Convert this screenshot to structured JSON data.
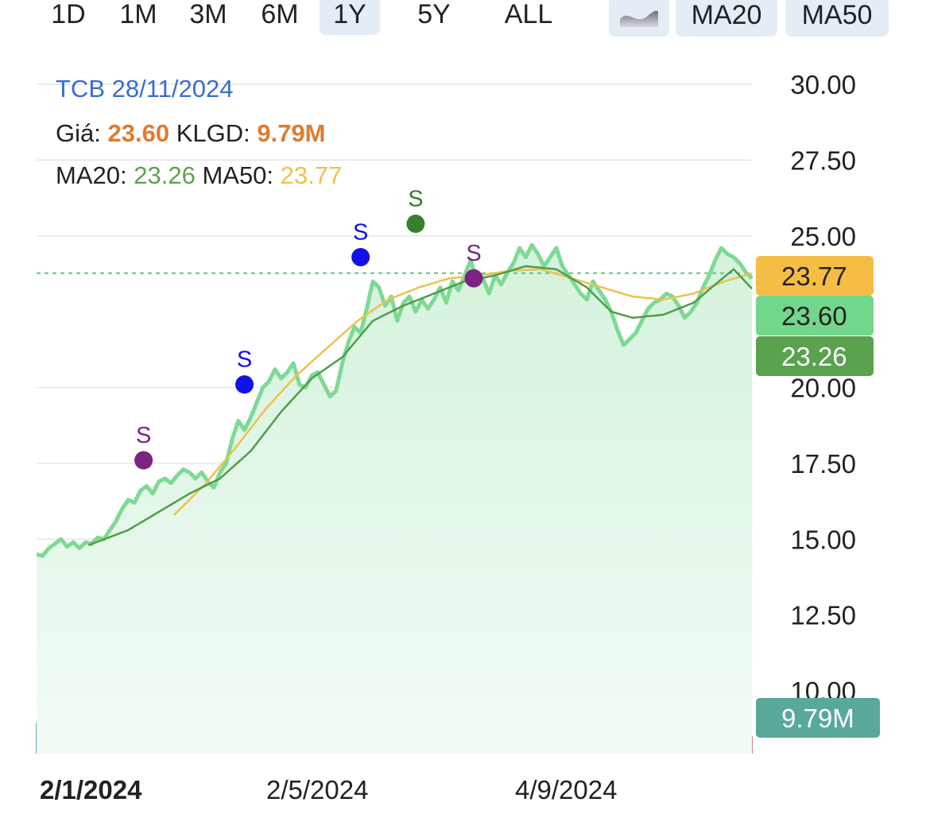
{
  "toolbar": {
    "ranges": [
      "1D",
      "1M",
      "3M",
      "6M",
      "1Y",
      "5Y",
      "ALL"
    ],
    "active_range": "1Y",
    "chart_type_icon": "area-chart-icon",
    "indicators": [
      "MA20",
      "MA50"
    ]
  },
  "header": {
    "symbol_date": "TCB 28/11/2024",
    "price_label": "Giá:",
    "price_value": "23.60",
    "volume_label": "KLGD:",
    "volume_value": "9.79M",
    "ma20_label": "MA20:",
    "ma20_value": "23.26",
    "ma50_label": "MA50:",
    "ma50_value": "23.77"
  },
  "colors": {
    "price_line": "#7ed995",
    "price_fill": "#dcf4e3",
    "ma20": "#4e9e48",
    "ma50": "#edc24c",
    "signal_blue": "#1111e8",
    "signal_purple": "#7b2283",
    "signal_green": "#34802c",
    "volume_up": "#3e9c8f",
    "volume_down": "#c9686a",
    "badge_ma50": "#f5bd45",
    "badge_price": "#72d68c",
    "badge_ma20": "#5aa24e",
    "badge_volume": "#59a99a",
    "header_price": "#e07b2e",
    "header_symbol": "#3a6bd0"
  },
  "chart_data": {
    "type": "line",
    "y_axis_ticks": [
      "30.00",
      "27.50",
      "25.00",
      "20.00",
      "17.50",
      "15.00",
      "12.50",
      "10.00"
    ],
    "ylim": [
      9.0,
      30.6
    ],
    "grid": true,
    "x_ticks": [
      {
        "label": "2/1/2024",
        "index": 0,
        "bold": true
      },
      {
        "label": "2/5/2024",
        "index": 80,
        "bold": false
      },
      {
        "label": "4/9/2024",
        "index": 165,
        "bold": false
      }
    ],
    "num_points": 235,
    "price_anchors": [
      [
        0,
        14.5
      ],
      [
        2,
        14.45
      ],
      [
        4,
        14.7
      ],
      [
        6,
        14.85
      ],
      [
        8,
        15.0
      ],
      [
        10,
        14.75
      ],
      [
        12,
        14.9
      ],
      [
        14,
        14.7
      ],
      [
        16,
        14.9
      ],
      [
        18,
        14.85
      ],
      [
        20,
        15.05
      ],
      [
        22,
        15.0
      ],
      [
        24,
        15.3
      ],
      [
        26,
        15.6
      ],
      [
        28,
        16.0
      ],
      [
        30,
        16.3
      ],
      [
        32,
        16.2
      ],
      [
        34,
        16.6
      ],
      [
        36,
        16.75
      ],
      [
        38,
        16.5
      ],
      [
        40,
        16.9
      ],
      [
        42,
        17.0
      ],
      [
        44,
        16.85
      ],
      [
        46,
        17.1
      ],
      [
        48,
        17.3
      ],
      [
        50,
        17.2
      ],
      [
        52,
        17.0
      ],
      [
        54,
        17.2
      ],
      [
        56,
        16.9
      ],
      [
        58,
        16.7
      ],
      [
        60,
        17.2
      ],
      [
        62,
        17.5
      ],
      [
        64,
        18.3
      ],
      [
        66,
        18.9
      ],
      [
        68,
        18.6
      ],
      [
        70,
        19.0
      ],
      [
        72,
        19.5
      ],
      [
        74,
        20.0
      ],
      [
        76,
        20.2
      ],
      [
        78,
        20.6
      ],
      [
        80,
        20.3
      ],
      [
        82,
        20.5
      ],
      [
        84,
        20.8
      ],
      [
        86,
        20.1
      ],
      [
        88,
        20.0
      ],
      [
        90,
        20.4
      ],
      [
        92,
        20.5
      ],
      [
        94,
        20.1
      ],
      [
        96,
        19.7
      ],
      [
        98,
        19.9
      ],
      [
        100,
        20.8
      ],
      [
        102,
        21.5
      ],
      [
        104,
        22.0
      ],
      [
        106,
        21.8
      ],
      [
        108,
        22.6
      ],
      [
        110,
        23.5
      ],
      [
        112,
        23.3
      ],
      [
        114,
        22.7
      ],
      [
        116,
        23.0
      ],
      [
        118,
        22.2
      ],
      [
        120,
        22.8
      ],
      [
        122,
        23.0
      ],
      [
        124,
        22.5
      ],
      [
        126,
        22.9
      ],
      [
        128,
        22.6
      ],
      [
        130,
        22.9
      ],
      [
        132,
        23.3
      ],
      [
        134,
        22.8
      ],
      [
        136,
        23.5
      ],
      [
        138,
        23.2
      ],
      [
        140,
        23.7
      ],
      [
        142,
        24.2
      ],
      [
        144,
        23.5
      ],
      [
        146,
        23.6
      ],
      [
        148,
        23.1
      ],
      [
        150,
        23.7
      ],
      [
        152,
        23.4
      ],
      [
        154,
        23.8
      ],
      [
        156,
        24.1
      ],
      [
        158,
        24.6
      ],
      [
        160,
        24.3
      ],
      [
        162,
        24.7
      ],
      [
        164,
        24.4
      ],
      [
        166,
        24.0
      ],
      [
        168,
        24.3
      ],
      [
        170,
        24.6
      ],
      [
        172,
        24.0
      ],
      [
        174,
        23.7
      ],
      [
        176,
        23.4
      ],
      [
        178,
        23.1
      ],
      [
        180,
        22.9
      ],
      [
        182,
        23.5
      ],
      [
        184,
        23.2
      ],
      [
        186,
        22.9
      ],
      [
        188,
        22.5
      ],
      [
        190,
        21.9
      ],
      [
        192,
        21.4
      ],
      [
        194,
        21.6
      ],
      [
        196,
        21.8
      ],
      [
        198,
        22.2
      ],
      [
        200,
        22.6
      ],
      [
        202,
        22.8
      ],
      [
        204,
        22.9
      ],
      [
        206,
        23.1
      ],
      [
        208,
        23.0
      ],
      [
        210,
        22.7
      ],
      [
        212,
        22.3
      ],
      [
        214,
        22.5
      ],
      [
        216,
        22.8
      ],
      [
        218,
        23.3
      ],
      [
        220,
        23.7
      ],
      [
        222,
        24.2
      ],
      [
        224,
        24.6
      ],
      [
        226,
        24.4
      ],
      [
        228,
        24.3
      ],
      [
        230,
        24.1
      ],
      [
        232,
        23.8
      ],
      [
        234,
        23.6
      ]
    ],
    "ma20_anchors": [
      [
        17,
        14.8
      ],
      [
        30,
        15.3
      ],
      [
        40,
        15.9
      ],
      [
        50,
        16.5
      ],
      [
        60,
        17.0
      ],
      [
        70,
        17.9
      ],
      [
        80,
        19.2
      ],
      [
        90,
        20.3
      ],
      [
        100,
        21.0
      ],
      [
        110,
        22.2
      ],
      [
        120,
        22.7
      ],
      [
        130,
        23.1
      ],
      [
        140,
        23.5
      ],
      [
        150,
        23.7
      ],
      [
        160,
        24.0
      ],
      [
        170,
        23.9
      ],
      [
        180,
        23.3
      ],
      [
        188,
        22.5
      ],
      [
        195,
        22.3
      ],
      [
        205,
        22.4
      ],
      [
        215,
        22.8
      ],
      [
        222,
        23.4
      ],
      [
        228,
        23.9
      ],
      [
        234,
        23.26
      ]
    ],
    "ma50_anchors": [
      [
        45,
        15.8
      ],
      [
        55,
        16.8
      ],
      [
        65,
        18.0
      ],
      [
        75,
        19.3
      ],
      [
        85,
        20.4
      ],
      [
        95,
        21.3
      ],
      [
        105,
        22.2
      ],
      [
        115,
        22.9
      ],
      [
        125,
        23.3
      ],
      [
        135,
        23.6
      ],
      [
        145,
        23.7
      ],
      [
        155,
        23.85
      ],
      [
        165,
        23.9
      ],
      [
        175,
        23.6
      ],
      [
        185,
        23.3
      ],
      [
        195,
        23.0
      ],
      [
        205,
        22.9
      ],
      [
        215,
        23.1
      ],
      [
        225,
        23.5
      ],
      [
        234,
        23.77
      ]
    ],
    "signals": [
      {
        "label": "S",
        "index": 35,
        "price": 17.6,
        "color": "signal_purple"
      },
      {
        "label": "S",
        "index": 68,
        "price": 20.1,
        "color": "signal_blue"
      },
      {
        "label": "S",
        "index": 106,
        "price": 24.3,
        "color": "signal_blue"
      },
      {
        "label": "S",
        "index": 124,
        "price": 25.4,
        "color": "signal_green"
      },
      {
        "label": "S",
        "index": 143,
        "price": 23.6,
        "color": "signal_purple"
      }
    ],
    "reference_line": 23.77,
    "badges": [
      {
        "value": "23.77",
        "color": "badge_ma50",
        "text_color": "#222222"
      },
      {
        "value": "23.60",
        "color": "badge_price",
        "text_color": "#222222"
      },
      {
        "value": "23.26",
        "color": "badge_ma20",
        "text_color": "#ffffff"
      },
      {
        "value": "9.79M",
        "color": "badge_volume",
        "text_color": "#ffffff"
      }
    ]
  }
}
